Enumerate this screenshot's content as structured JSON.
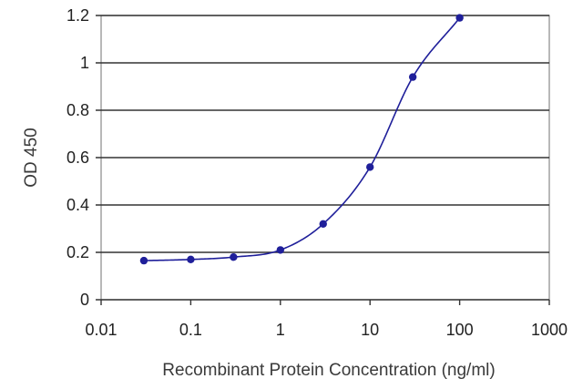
{
  "chart_data": {
    "type": "scatter",
    "title": "",
    "xlabel": "Recombinant Protein Concentration (ng/ml)",
    "ylabel": "OD 450",
    "xscale": "log",
    "xlim": [
      0.01,
      1000
    ],
    "ylim": [
      0,
      1.2
    ],
    "x_ticks": [
      0.01,
      0.1,
      1,
      10,
      100,
      1000
    ],
    "x_tick_labels": [
      "0.01",
      "0.1",
      "1",
      "10",
      "100",
      "1000"
    ],
    "y_ticks": [
      0,
      0.2,
      0.4,
      0.6,
      0.8,
      1,
      1.2
    ],
    "y_tick_labels": [
      "0",
      "0.2",
      "0.4",
      "0.6",
      "0.8",
      "1",
      "1.2"
    ],
    "grid": "horizontal",
    "legend": "none",
    "series": [
      {
        "x": [
          0.03,
          0.1,
          0.3,
          1,
          3,
          10,
          30,
          100
        ],
        "y": [
          0.165,
          0.17,
          0.18,
          0.21,
          0.32,
          0.56,
          0.94,
          1.19
        ],
        "fit_curve": true
      }
    ],
    "colors": {
      "series": "#1f1f9a",
      "grid": "#333333",
      "frame": "#888888"
    }
  }
}
